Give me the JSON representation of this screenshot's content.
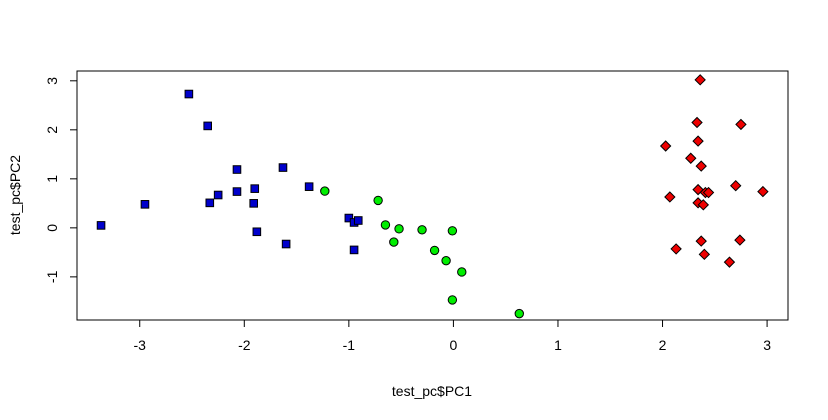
{
  "chart_data": {
    "type": "scatter",
    "title": "",
    "xlabel": "test_pc$PC1",
    "ylabel": "test_pc$PC2",
    "xlim": [
      -3.6,
      3.2
    ],
    "ylim": [
      -1.88,
      3.2
    ],
    "xticks": [
      -3,
      -2,
      -1,
      0,
      1,
      2,
      3
    ],
    "yticks": [
      -1,
      0,
      1,
      2,
      3
    ],
    "grid": false,
    "series": [
      {
        "marker": "square",
        "color": "#0000cc",
        "points": [
          [
            -3.37,
            0.05
          ],
          [
            -2.95,
            0.48
          ],
          [
            -2.53,
            2.73
          ],
          [
            -2.35,
            2.08
          ],
          [
            -2.33,
            0.51
          ],
          [
            -2.25,
            0.67
          ],
          [
            -2.07,
            1.19
          ],
          [
            -2.07,
            0.74
          ],
          [
            -1.9,
            0.8
          ],
          [
            -1.91,
            0.5
          ],
          [
            -1.88,
            -0.08
          ],
          [
            -1.63,
            1.23
          ],
          [
            -1.6,
            -0.33
          ],
          [
            -1.38,
            0.84
          ],
          [
            -1.0,
            0.2
          ],
          [
            -0.95,
            0.11
          ],
          [
            -0.91,
            0.15
          ],
          [
            -0.95,
            -0.45
          ]
        ]
      },
      {
        "marker": "circle",
        "color": "#00ee00",
        "points": [
          [
            -1.23,
            0.75
          ],
          [
            -0.72,
            0.56
          ],
          [
            -0.65,
            0.06
          ],
          [
            -0.52,
            -0.02
          ],
          [
            -0.57,
            -0.29
          ],
          [
            -0.3,
            -0.04
          ],
          [
            -0.01,
            -0.06
          ],
          [
            -0.18,
            -0.46
          ],
          [
            -0.07,
            -0.67
          ],
          [
            0.08,
            -0.9
          ],
          [
            -0.01,
            -1.47
          ],
          [
            0.63,
            -1.75
          ]
        ]
      },
      {
        "marker": "diamond",
        "color": "#ee0000",
        "points": [
          [
            2.36,
            3.02
          ],
          [
            2.33,
            2.15
          ],
          [
            2.75,
            2.11
          ],
          [
            2.34,
            1.77
          ],
          [
            2.03,
            1.67
          ],
          [
            2.27,
            1.42
          ],
          [
            2.37,
            1.26
          ],
          [
            2.34,
            0.78
          ],
          [
            2.41,
            0.72
          ],
          [
            2.44,
            0.72
          ],
          [
            2.7,
            0.86
          ],
          [
            2.96,
            0.74
          ],
          [
            2.07,
            0.63
          ],
          [
            2.34,
            0.51
          ],
          [
            2.39,
            0.47
          ],
          [
            2.37,
            -0.27
          ],
          [
            2.74,
            -0.25
          ],
          [
            2.13,
            -0.43
          ],
          [
            2.4,
            -0.54
          ],
          [
            2.64,
            -0.7
          ]
        ]
      }
    ]
  }
}
